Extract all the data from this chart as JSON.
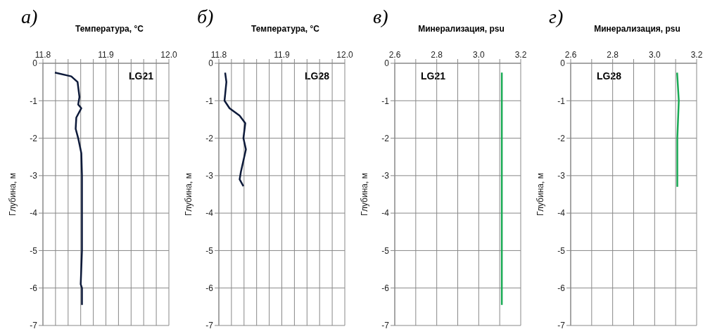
{
  "chart_data": [
    {
      "type": "line",
      "title": "а)",
      "xlabel": "Температура, °C",
      "ylabel": "Глубина, м",
      "xlim": [
        11.8,
        12.0
      ],
      "xticks": [
        {
          "value": 11.8,
          "label": "11.8"
        },
        {
          "value": 11.82,
          "label": null
        },
        {
          "value": 11.84,
          "label": null
        },
        {
          "value": 11.86,
          "label": null
        },
        {
          "value": 11.88,
          "label": null
        },
        {
          "value": 11.9,
          "label": "11.9"
        },
        {
          "value": 11.92,
          "label": null
        },
        {
          "value": 11.94,
          "label": null
        },
        {
          "value": 11.96,
          "label": null
        },
        {
          "value": 11.98,
          "label": null
        },
        {
          "value": 12.0,
          "label": "12.0"
        }
      ],
      "ylim": [
        -7,
        0
      ],
      "yticks": [
        0,
        -1,
        -2,
        -3,
        -4,
        -5,
        -6,
        -7
      ],
      "grid": true,
      "annotations": [
        "LG21"
      ],
      "series": [
        {
          "color": "#0d1a3a",
          "x": [
            11.819,
            11.845,
            11.855,
            11.858,
            11.856,
            11.861,
            11.853,
            11.852,
            11.856,
            11.861,
            11.862,
            11.862,
            11.862,
            11.86,
            11.862,
            11.862
          ],
          "values": [
            -0.25,
            -0.35,
            -0.5,
            -0.9,
            -1.1,
            -1.2,
            -1.45,
            -1.75,
            -2.0,
            -2.4,
            -3.0,
            -4.0,
            -5.0,
            -5.9,
            -6.0,
            -6.45
          ]
        }
      ]
    },
    {
      "type": "line",
      "title": "б)",
      "xlabel": "Температура, °C",
      "ylabel": "Глубина, м",
      "xlim": [
        11.8,
        12.0
      ],
      "xticks": [
        {
          "value": 11.8,
          "label": "11.8"
        },
        {
          "value": 11.82,
          "label": null
        },
        {
          "value": 11.84,
          "label": null
        },
        {
          "value": 11.86,
          "label": null
        },
        {
          "value": 11.88,
          "label": null
        },
        {
          "value": 11.9,
          "label": "11.9"
        },
        {
          "value": 11.92,
          "label": null
        },
        {
          "value": 11.94,
          "label": null
        },
        {
          "value": 11.96,
          "label": null
        },
        {
          "value": 11.98,
          "label": null
        },
        {
          "value": 12.0,
          "label": "12.0"
        }
      ],
      "ylim": [
        -7,
        0
      ],
      "yticks": [
        0,
        -1,
        -2,
        -3,
        -4,
        -5,
        -6,
        -7
      ],
      "grid": true,
      "annotations": [
        "LG28"
      ],
      "series": [
        {
          "color": "#0d1a3a",
          "x": [
            11.81,
            11.812,
            11.809,
            11.817,
            11.833,
            11.842,
            11.839,
            11.843,
            11.839,
            11.835,
            11.833,
            11.839
          ],
          "values": [
            -0.25,
            -0.5,
            -1.0,
            -1.2,
            -1.4,
            -1.6,
            -2.0,
            -2.3,
            -2.6,
            -2.9,
            -3.1,
            -3.28
          ]
        }
      ]
    },
    {
      "type": "line",
      "title": "в)",
      "xlabel": "Минерализация, psu",
      "ylabel": "Глубина, м",
      "xlim": [
        2.6,
        3.2
      ],
      "xticks": [
        {
          "value": 2.6,
          "label": "2.6"
        },
        {
          "value": 2.7,
          "label": null
        },
        {
          "value": 2.8,
          "label": "2.8"
        },
        {
          "value": 2.9,
          "label": null
        },
        {
          "value": 3.0,
          "label": "3.0"
        },
        {
          "value": 3.1,
          "label": null
        },
        {
          "value": 3.2,
          "label": "3.2"
        }
      ],
      "ylim": [
        -7,
        0
      ],
      "yticks": [
        0,
        -1,
        -2,
        -3,
        -4,
        -5,
        -6,
        -7
      ],
      "grid": true,
      "annotations": [
        "LG21"
      ],
      "series": [
        {
          "color": "#1aaa55",
          "x": [
            3.11,
            3.11,
            3.11,
            3.11
          ],
          "values": [
            -0.25,
            -2.0,
            -4.0,
            -6.45
          ]
        }
      ]
    },
    {
      "type": "line",
      "title": "г)",
      "xlabel": "Минерализация, psu",
      "ylabel": "Глубина, м",
      "xlim": [
        2.6,
        3.2
      ],
      "xticks": [
        {
          "value": 2.6,
          "label": "2.6"
        },
        {
          "value": 2.7,
          "label": null
        },
        {
          "value": 2.8,
          "label": "2.8"
        },
        {
          "value": 2.9,
          "label": null
        },
        {
          "value": 3.0,
          "label": "3.0"
        },
        {
          "value": 3.1,
          "label": null
        },
        {
          "value": 3.2,
          "label": "3.2"
        }
      ],
      "ylim": [
        -7,
        0
      ],
      "yticks": [
        0,
        -1,
        -2,
        -3,
        -4,
        -5,
        -6,
        -7
      ],
      "grid": true,
      "annotations": [
        "LG28"
      ],
      "series": [
        {
          "color": "#1aaa55",
          "x": [
            3.107,
            3.115,
            3.108,
            3.108
          ],
          "values": [
            -0.25,
            -1.0,
            -2.0,
            -3.3
          ]
        }
      ]
    }
  ]
}
